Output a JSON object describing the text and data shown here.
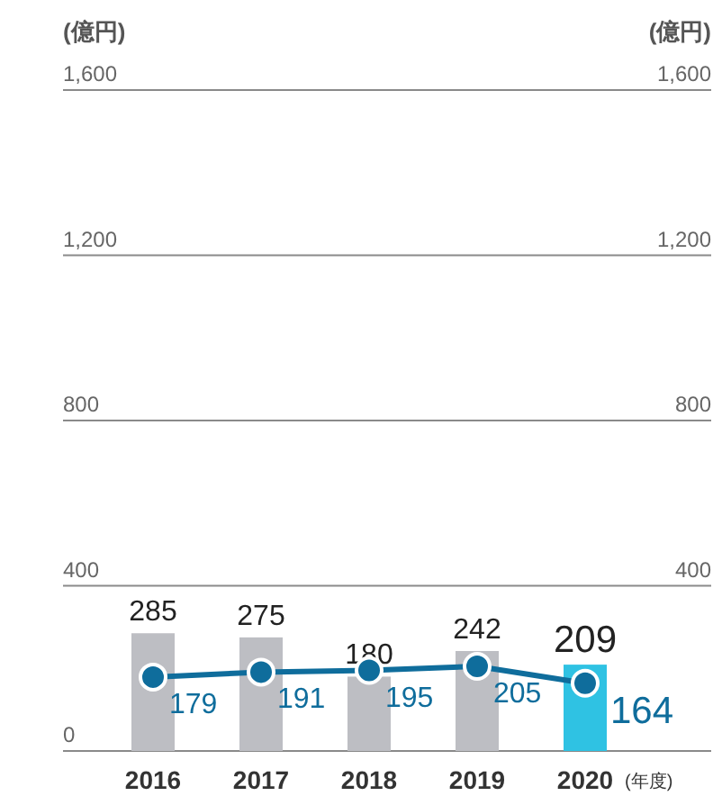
{
  "chart_data": {
    "type": "bar",
    "ylabel": "(億円)",
    "y2label": "(億円)",
    "xlabel": "(年度)",
    "categories": [
      "2016",
      "2017",
      "2018",
      "2019",
      "2020"
    ],
    "series": [
      {
        "colors": [
          "#bdbec3",
          "#bdbec3",
          "#bdbec3",
          "#bdbec3",
          "#2fc2e3"
        ],
        "values": [
          285,
          275,
          180,
          242,
          209
        ]
      },
      {
        "type": "line",
        "axis": "y2",
        "color": "#0f6d9c",
        "marker": "circle",
        "values": [
          179,
          191,
          195,
          205,
          164
        ]
      }
    ],
    "ylim": [
      0,
      1600
    ],
    "yticks": [
      0,
      400,
      800,
      {
        "value": 1200,
        "label": "1,200"
      },
      {
        "value": 1600,
        "label": "1,600"
      }
    ],
    "y2lim": [
      0,
      1600
    ],
    "y2ticks": [
      400,
      800,
      {
        "value": 1200,
        "label": "1,200"
      },
      {
        "value": 1600,
        "label": "1,600"
      }
    ],
    "grid": "y",
    "data_labels": true
  }
}
